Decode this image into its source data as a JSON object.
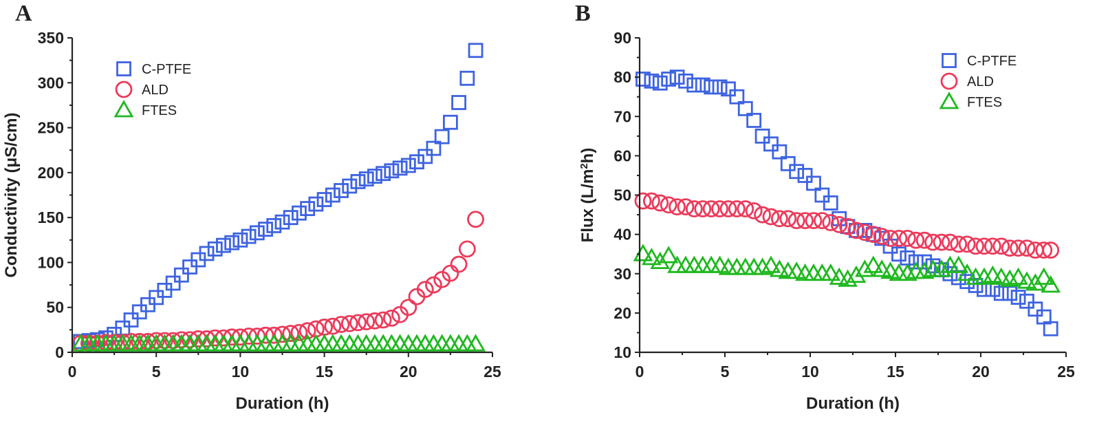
{
  "colors": {
    "c_ptfe": "#3d63e0",
    "ald": "#ec3a5a",
    "ftes": "#1fb81f"
  },
  "chart_data": [
    {
      "panel": "A",
      "type": "scatter",
      "xlabel": "Duration (h)",
      "ylabel": "Conductivity (μS/cm)",
      "xlim": [
        0,
        25
      ],
      "ylim": [
        0,
        350
      ],
      "xticks": [
        0,
        5,
        10,
        15,
        20,
        25
      ],
      "yticks": [
        0,
        50,
        100,
        150,
        200,
        250,
        300,
        350
      ],
      "grid": false,
      "legend_position": "top-left",
      "series": [
        {
          "name": "C-PTFE",
          "marker": "square",
          "color_key": "c_ptfe",
          "x": [
            0.5,
            1,
            1.5,
            2,
            2.5,
            3,
            3.5,
            4,
            4.5,
            5,
            5.5,
            6,
            6.5,
            7,
            7.5,
            8,
            8.5,
            9,
            9.5,
            10,
            10.5,
            11,
            11.5,
            12,
            12.5,
            13,
            13.5,
            14,
            14.5,
            15,
            15.5,
            16,
            16.5,
            17,
            17.5,
            18,
            18.5,
            19,
            19.5,
            20,
            20.5,
            21,
            21.5,
            22,
            22.5,
            23,
            23.5,
            24
          ],
          "y": [
            12,
            13,
            14,
            16,
            20,
            27,
            36,
            45,
            53,
            61,
            69,
            77,
            86,
            95,
            103,
            110,
            115,
            119,
            122,
            125,
            129,
            133,
            137,
            141,
            145,
            150,
            155,
            160,
            165,
            170,
            175,
            180,
            185,
            190,
            193,
            196,
            199,
            202,
            205,
            208,
            212,
            218,
            227,
            240,
            256,
            278,
            305,
            336
          ]
        },
        {
          "name": "ALD",
          "marker": "circle",
          "color_key": "ald",
          "x": [
            0.5,
            1,
            1.5,
            2,
            2.5,
            3,
            3.5,
            4,
            4.5,
            5,
            5.5,
            6,
            6.5,
            7,
            7.5,
            8,
            8.5,
            9,
            9.5,
            10,
            10.5,
            11,
            11.5,
            12,
            12.5,
            13,
            13.5,
            14,
            14.5,
            15,
            15.5,
            16,
            16.5,
            17,
            17.5,
            18,
            18.5,
            19,
            19.5,
            20,
            20.5,
            21,
            21.5,
            22,
            22.5,
            23,
            23.5,
            24
          ],
          "y": [
            10,
            10,
            10,
            11,
            11,
            11,
            12,
            12,
            12,
            13,
            13,
            13,
            14,
            14,
            15,
            15,
            16,
            16,
            17,
            17,
            18,
            18,
            19,
            19,
            20,
            21,
            22,
            24,
            26,
            28,
            29,
            31,
            32,
            33,
            34,
            35,
            36,
            38,
            42,
            50,
            62,
            70,
            75,
            81,
            88,
            98,
            115,
            148
          ]
        },
        {
          "name": "FTES",
          "marker": "triangle",
          "color_key": "ftes",
          "x": [
            0.5,
            1,
            1.5,
            2,
            2.5,
            3,
            3.5,
            4,
            4.5,
            5,
            5.5,
            6,
            6.5,
            7,
            7.5,
            8,
            8.5,
            9,
            9.5,
            10,
            10.5,
            11,
            11.5,
            12,
            12.5,
            13,
            13.5,
            14,
            14.5,
            15,
            15.5,
            16,
            16.5,
            17,
            17.5,
            18,
            18.5,
            19,
            19.5,
            20,
            20.5,
            21,
            21.5,
            22,
            22.5,
            23,
            23.5,
            24
          ],
          "y": [
            9,
            9,
            9,
            9,
            9,
            9,
            9,
            9,
            9,
            9,
            9,
            9,
            9,
            9,
            9,
            9,
            9,
            9,
            9,
            9,
            9,
            9,
            9,
            9,
            9,
            9,
            9,
            9,
            9,
            9,
            9,
            9,
            9,
            9,
            9,
            9,
            9,
            9,
            9,
            9,
            9,
            9,
            9,
            9,
            9,
            9,
            9,
            9
          ]
        }
      ]
    },
    {
      "panel": "B",
      "type": "scatter",
      "xlabel": "Duration (h)",
      "ylabel": "Flux (L/m",
      "ylabel_sup": "2",
      "ylabel_tail": "h)",
      "xlim": [
        0,
        25
      ],
      "ylim": [
        10,
        90
      ],
      "xticks": [
        0,
        5,
        10,
        15,
        20,
        25
      ],
      "yticks": [
        10,
        20,
        30,
        40,
        50,
        60,
        70,
        80,
        90
      ],
      "grid": false,
      "legend_position": "top-right",
      "series": [
        {
          "name": "C-PTFE",
          "marker": "square",
          "color_key": "c_ptfe",
          "x": [
            0.2,
            0.7,
            1.2,
            1.7,
            2.2,
            2.7,
            3.2,
            3.7,
            4.2,
            4.7,
            5.2,
            5.7,
            6.2,
            6.7,
            7.2,
            7.7,
            8.2,
            8.7,
            9.2,
            9.7,
            10.2,
            10.7,
            11.2,
            11.7,
            12.2,
            12.7,
            13.2,
            13.7,
            14.2,
            14.7,
            15.2,
            15.7,
            16.2,
            16.7,
            17.2,
            17.7,
            18.2,
            18.7,
            19.2,
            19.7,
            20.2,
            20.7,
            21.2,
            21.7,
            22.2,
            22.7,
            23.2,
            23.7,
            24.1
          ],
          "y": [
            79.5,
            79,
            78.5,
            79.5,
            80,
            79,
            78,
            78,
            77.5,
            77.5,
            77,
            75,
            72,
            69,
            65,
            63,
            61,
            58,
            56,
            55,
            53,
            50,
            48,
            44,
            42,
            41,
            41,
            40,
            39,
            37,
            35,
            34,
            33,
            33,
            32,
            31,
            30,
            29,
            28,
            27,
            26,
            26,
            25,
            25,
            24,
            23,
            21,
            19,
            16
          ]
        },
        {
          "name": "ALD",
          "marker": "circle",
          "color_key": "ald",
          "x": [
            0.2,
            0.7,
            1.2,
            1.7,
            2.2,
            2.7,
            3.2,
            3.7,
            4.2,
            4.7,
            5.2,
            5.7,
            6.2,
            6.7,
            7.2,
            7.7,
            8.2,
            8.7,
            9.2,
            9.7,
            10.2,
            10.7,
            11.2,
            11.7,
            12.2,
            12.7,
            13.2,
            13.7,
            14.2,
            14.7,
            15.2,
            15.7,
            16.2,
            16.7,
            17.2,
            17.7,
            18.2,
            18.7,
            19.2,
            19.7,
            20.2,
            20.7,
            21.2,
            21.7,
            22.2,
            22.7,
            23.2,
            23.7,
            24.1
          ],
          "y": [
            48.5,
            48.5,
            48,
            47.5,
            47,
            47,
            46.5,
            46.5,
            46.5,
            46.5,
            46.5,
            46.5,
            46.5,
            46,
            45,
            44.5,
            44,
            44,
            43.5,
            43.5,
            43.5,
            43.5,
            43,
            42.5,
            42,
            41,
            40.5,
            40,
            39.5,
            39,
            39,
            39,
            38.5,
            38.5,
            38,
            38,
            38,
            37.5,
            37.5,
            37,
            37,
            37,
            37,
            36.5,
            36.5,
            36.5,
            36,
            36,
            36
          ]
        },
        {
          "name": "FTES",
          "marker": "triangle",
          "color_key": "ftes",
          "x": [
            0.2,
            0.7,
            1.2,
            1.7,
            2.2,
            2.7,
            3.2,
            3.7,
            4.2,
            4.7,
            5.2,
            5.7,
            6.2,
            6.7,
            7.2,
            7.7,
            8.2,
            8.7,
            9.2,
            9.7,
            10.2,
            10.7,
            11.2,
            11.7,
            12.2,
            12.7,
            13.2,
            13.7,
            14.2,
            14.7,
            15.2,
            15.7,
            16.2,
            16.7,
            17.2,
            17.7,
            18.2,
            18.7,
            19.2,
            19.7,
            20.2,
            20.7,
            21.2,
            21.7,
            22.2,
            22.7,
            23.2,
            23.7,
            24.1
          ],
          "y": [
            35,
            34,
            33,
            34.5,
            32,
            32,
            32,
            32,
            32,
            32,
            31.5,
            31.5,
            31.5,
            31.5,
            31.5,
            32,
            31,
            30.5,
            30.5,
            30,
            30,
            30,
            30,
            29,
            28.5,
            29.5,
            31,
            32,
            31,
            30.5,
            30,
            30,
            30.5,
            30.5,
            31,
            31,
            32,
            32,
            30,
            29,
            29,
            29.5,
            29,
            28.5,
            29,
            28,
            27.5,
            29,
            27
          ]
        }
      ]
    }
  ]
}
